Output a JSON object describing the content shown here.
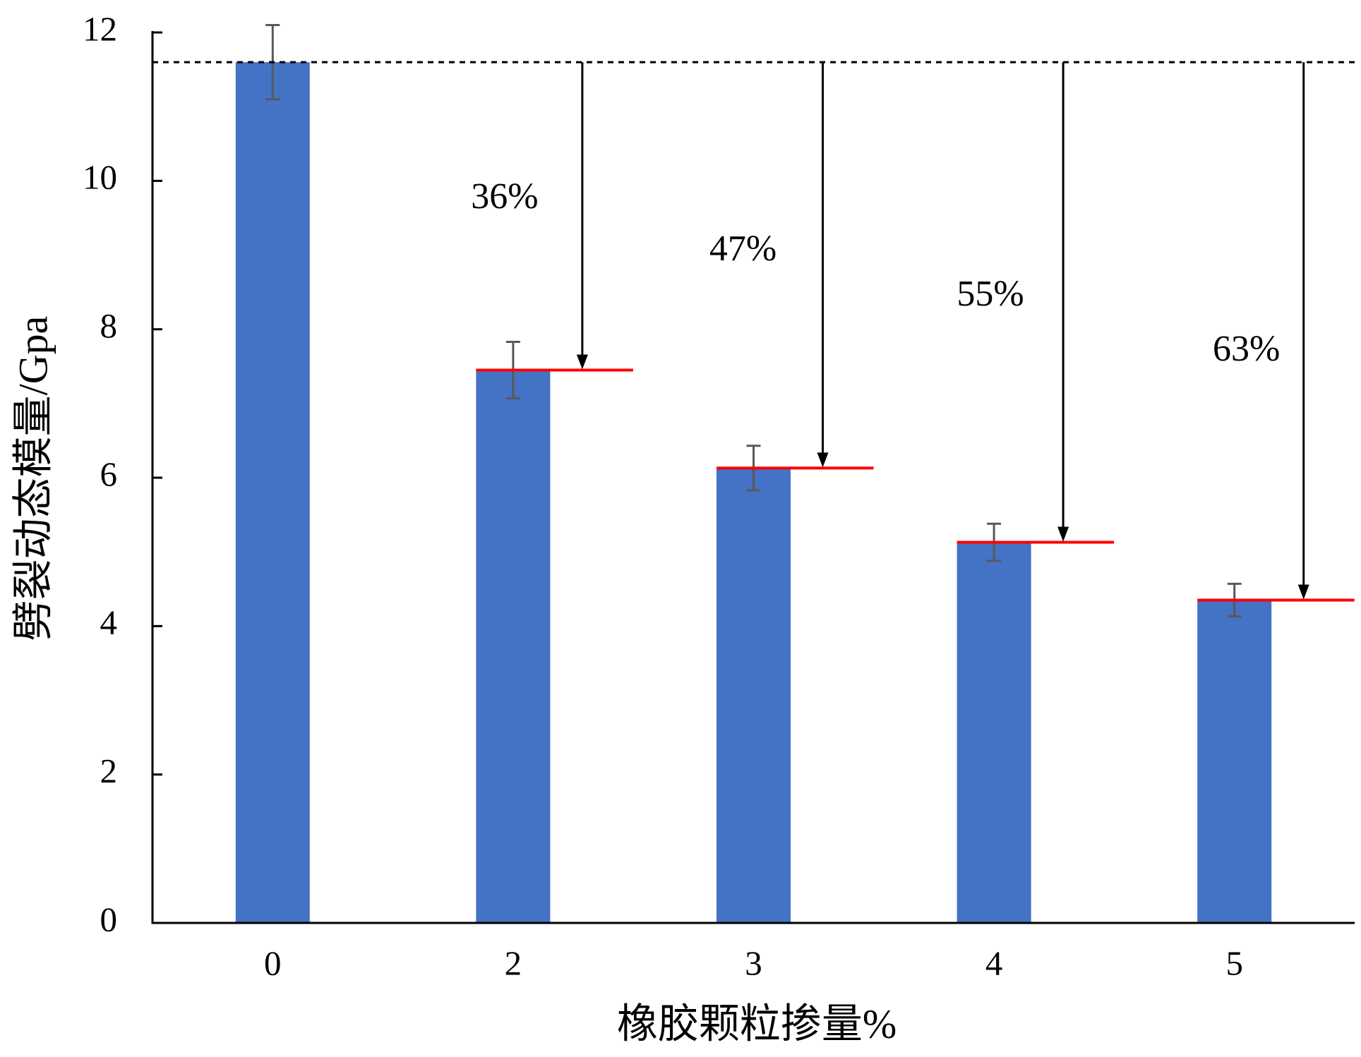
{
  "chart_data": {
    "type": "bar",
    "xlabel": "橡胶颗粒掺量%",
    "ylabel": "劈裂动态模量/Gpa",
    "categories": [
      "0",
      "2",
      "3",
      "4",
      "5"
    ],
    "values": [
      11.6,
      7.45,
      6.13,
      5.13,
      4.35
    ],
    "error": [
      0.5,
      0.38,
      0.3,
      0.25,
      0.22
    ],
    "ylim": [
      0,
      12
    ],
    "yticks": [
      0,
      2,
      4,
      6,
      8,
      10,
      12
    ],
    "reference_line": {
      "value": 11.6,
      "style": "dashed"
    },
    "reduction_labels": [
      "36%",
      "47%",
      "55%",
      "63%"
    ],
    "grid": false,
    "legend": "none",
    "colors": {
      "bar": "#4472C4",
      "error_bar": "#595959",
      "level_line": "#FF0000",
      "reference_line": "#000000",
      "arrow": "#000000",
      "axis": "#000000"
    }
  }
}
